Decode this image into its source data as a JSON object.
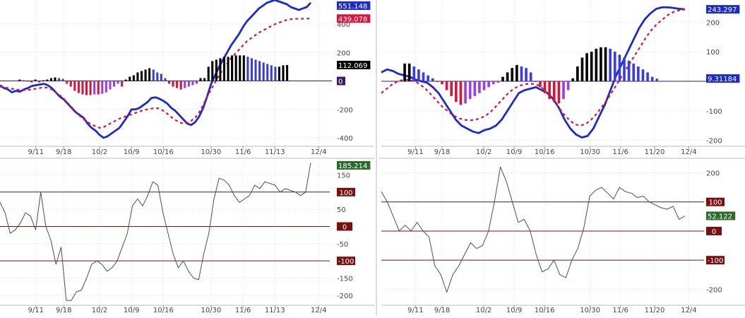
{
  "colors": {
    "macd_line": "#1a2acc",
    "signal_line": "#d4163a",
    "hist_positive": "#000000",
    "hist_down_blue": "#3a3ee0",
    "hist_negative": "#d4163a",
    "hist_up_purple": "#9c3ee0",
    "cci_line": "#3d5a3a",
    "ref_line": "#7a0f0f",
    "grid": "#d8d8d8",
    "axis_text": "#444444"
  },
  "chart_data": [
    {
      "id": "left-macd",
      "type": "bar",
      "title": "",
      "x_tick_labels": [
        "9/11",
        "9/18",
        "10/2",
        "10/9",
        "10/16",
        "10/30",
        "11/6",
        "11/13",
        "12/4"
      ],
      "x_tick_indices": [
        9,
        16,
        25,
        33,
        41,
        53,
        61,
        69,
        80
      ],
      "y_ticks": [
        400,
        200,
        -200,
        -400
      ],
      "ylim": [
        -450,
        560
      ],
      "grid": true,
      "x_count": 79,
      "series": [
        {
          "name": "",
          "kind": "line",
          "style": "solid",
          "values": [
            -30,
            -50,
            -60,
            -80,
            -70,
            -75,
            -60,
            -50,
            -35,
            -30,
            -25,
            -20,
            -30,
            -50,
            -80,
            -110,
            -130,
            -160,
            -190,
            -220,
            -240,
            -260,
            -300,
            -330,
            -350,
            -380,
            -400,
            -390,
            -370,
            -350,
            -330,
            -290,
            -250,
            -200,
            -200,
            -190,
            -170,
            -150,
            -120,
            -115,
            -125,
            -140,
            -160,
            -190,
            -210,
            -240,
            -270,
            -300,
            -310,
            -290,
            -250,
            -190,
            -110,
            -20,
            40,
            100,
            150,
            200,
            250,
            290,
            330,
            380,
            420,
            450,
            480,
            510,
            530,
            550,
            560,
            570,
            560,
            550,
            540,
            520,
            510,
            500,
            510,
            520,
            551
          ]
        },
        {
          "name": "",
          "kind": "line",
          "style": "dashed",
          "values": [
            -40,
            -45,
            -50,
            -55,
            -60,
            -63,
            -65,
            -64,
            -60,
            -55,
            -50,
            -45,
            -48,
            -60,
            -80,
            -100,
            -125,
            -155,
            -185,
            -215,
            -245,
            -270,
            -290,
            -305,
            -320,
            -330,
            -325,
            -310,
            -295,
            -280,
            -265,
            -255,
            -245,
            -235,
            -225,
            -215,
            -205,
            -200,
            -195,
            -190,
            -195,
            -210,
            -230,
            -255,
            -275,
            -290,
            -300,
            -295,
            -280,
            -260,
            -220,
            -170,
            -110,
            -60,
            -10,
            40,
            80,
            120,
            160,
            190,
            220,
            250,
            280,
            300,
            320,
            340,
            355,
            370,
            385,
            400,
            410,
            420,
            430,
            435,
            437,
            438,
            438,
            439,
            439
          ]
        },
        {
          "name": "",
          "kind": "histogram",
          "values": [
            10,
            5,
            -5,
            -10,
            10,
            -10,
            5,
            10,
            20,
            25,
            20,
            15,
            -20,
            -40,
            -70,
            -85,
            -95,
            -100,
            -100,
            -95,
            -95,
            -90,
            -80,
            -60,
            -40,
            -20,
            -40,
            10,
            30,
            40,
            60,
            70,
            80,
            90,
            80,
            60,
            50,
            20,
            -20,
            -40,
            -50,
            -60,
            -50,
            -40,
            -30,
            -20,
            20,
            20,
            100,
            140,
            150,
            160,
            170,
            170,
            180,
            180,
            180,
            180,
            170,
            160,
            150,
            140,
            130,
            120,
            110,
            100,
            100,
            110,
            112
          ]
        }
      ],
      "value_labels": [
        {
          "text": "551.148",
          "value": 551.148,
          "color": "#1a2acc"
        },
        {
          "text": "439.078",
          "value": 439.078,
          "color": "#d4163a"
        },
        {
          "text": "112.069",
          "value": 112.069,
          "color": "#000000"
        },
        {
          "text": "0",
          "value": 0,
          "color": "#3a1a6a"
        }
      ]
    },
    {
      "id": "right-macd",
      "type": "bar",
      "title": "",
      "x_tick_labels": [
        "9/11",
        "9/18",
        "10/2",
        "10/9",
        "10/16",
        "10/30",
        "11/6",
        "11/20",
        "12/4"
      ],
      "x_tick_indices": [
        9,
        16,
        27,
        35,
        43,
        55,
        63,
        72,
        81
      ],
      "y_ticks": [
        200,
        100,
        -100,
        -200
      ],
      "ylim": [
        -215,
        270
      ],
      "grid": true,
      "x_count": 81,
      "series": [
        {
          "name": "",
          "kind": "line",
          "style": "solid",
          "values": [
            30,
            40,
            35,
            25,
            20,
            15,
            5,
            0,
            -5,
            -20,
            -40,
            -70,
            -100,
            -130,
            -150,
            -160,
            -170,
            -175,
            -165,
            -160,
            -150,
            -130,
            -100,
            -70,
            -40,
            -30,
            -25,
            -20,
            -30,
            -40,
            -60,
            -90,
            -130,
            -160,
            -180,
            -190,
            -185,
            -160,
            -120,
            -80,
            -30,
            20,
            60,
            100,
            140,
            180,
            210,
            230,
            245,
            250,
            250,
            248,
            245,
            243
          ]
        },
        {
          "name": "",
          "kind": "line",
          "style": "dashed",
          "values": [
            -40,
            -25,
            -10,
            0,
            5,
            5,
            0,
            -10,
            -25,
            -45,
            -65,
            -85,
            -100,
            -115,
            -125,
            -130,
            -132,
            -130,
            -125,
            -115,
            -100,
            -80,
            -60,
            -40,
            -25,
            -15,
            -10,
            -8,
            -10,
            -20,
            -40,
            -60,
            -85,
            -110,
            -130,
            -145,
            -150,
            -145,
            -130,
            -110,
            -85,
            -60,
            -30,
            0,
            30,
            60,
            90,
            120,
            150,
            175,
            195,
            210,
            225,
            235,
            240,
            243
          ]
        },
        {
          "name": "",
          "kind": "histogram",
          "values": [
            60,
            60,
            50,
            40,
            30,
            20,
            10,
            0,
            -10,
            -30,
            -50,
            -70,
            -80,
            -75,
            -60,
            -50,
            -40,
            -30,
            -20,
            -10,
            -5,
            15,
            30,
            45,
            55,
            50,
            45,
            30,
            0,
            -20,
            -40,
            -60,
            -70,
            -75,
            -60,
            -30,
            10,
            50,
            80,
            95,
            100,
            110,
            115,
            115,
            110,
            100,
            90,
            80,
            70,
            60,
            50,
            40,
            30,
            15,
            9
          ]
        }
      ],
      "value_labels": [
        {
          "text": "243.297",
          "value": 243.297,
          "color": "#1a2acc"
        },
        {
          "text": "9.31184",
          "value": 9.31184,
          "color": "#1a2acc"
        }
      ]
    },
    {
      "id": "left-cci",
      "type": "line",
      "title": "",
      "x_tick_labels": [
        "9/11",
        "9/18",
        "10/2",
        "10/9",
        "10/16",
        "10/30",
        "11/6",
        "11/13",
        "12/4"
      ],
      "x_tick_indices": [
        9,
        16,
        25,
        33,
        41,
        53,
        61,
        69,
        80
      ],
      "y_ticks": [
        150,
        50,
        -50,
        -150,
        -200
      ],
      "ylim": [
        -225,
        190
      ],
      "grid": true,
      "x_count": 79,
      "series": [
        {
          "name": "",
          "values": [
            70,
            40,
            -20,
            -10,
            10,
            40,
            30,
            -10,
            100,
            0,
            -40,
            -110,
            -60,
            -215,
            -215,
            -190,
            -185,
            -150,
            -110,
            -100,
            -110,
            -130,
            -120,
            -100,
            -60,
            -20,
            60,
            80,
            60,
            90,
            130,
            120,
            40,
            -20,
            -80,
            -120,
            -100,
            -130,
            -150,
            -155,
            -80,
            -20,
            80,
            140,
            135,
            120,
            90,
            70,
            80,
            90,
            120,
            110,
            130,
            125,
            120,
            100,
            110,
            105,
            100,
            90,
            100,
            185
          ]
        }
      ],
      "reference_lines": [
        {
          "value": 100,
          "label": "100"
        },
        {
          "value": 0,
          "label": "0"
        },
        {
          "value": -100,
          "label": "-100"
        }
      ],
      "value_labels": [
        {
          "text": "185.214",
          "value": 185.214,
          "color": "#2a6a2a"
        }
      ]
    },
    {
      "id": "right-cci",
      "type": "line",
      "title": "",
      "x_tick_labels": [
        "9/11",
        "9/18",
        "10/2",
        "10/9",
        "10/16",
        "10/30",
        "11/6",
        "11/20",
        "12/4"
      ],
      "x_tick_indices": [
        9,
        16,
        27,
        35,
        43,
        55,
        63,
        72,
        81
      ],
      "y_ticks": [
        200,
        -200
      ],
      "ylim": [
        -250,
        240
      ],
      "grid": true,
      "x_count": 81,
      "series": [
        {
          "name": "",
          "values": [
            135,
            100,
            50,
            0,
            20,
            0,
            30,
            0,
            -20,
            -120,
            -150,
            -210,
            -150,
            -120,
            -80,
            -40,
            -60,
            -50,
            0,
            100,
            220,
            170,
            100,
            30,
            40,
            0,
            -80,
            -140,
            -130,
            -100,
            -150,
            -160,
            -100,
            -60,
            10,
            120,
            140,
            150,
            130,
            110,
            150,
            135,
            130,
            115,
            120,
            100,
            90,
            80,
            75,
            85,
            40,
            52
          ]
        }
      ],
      "reference_lines": [
        {
          "value": 100,
          "label": "100"
        },
        {
          "value": 0,
          "label": "0"
        },
        {
          "value": -100,
          "label": "-100"
        }
      ],
      "value_labels": [
        {
          "text": "52.122",
          "value": 52.122,
          "color": "#2a6a2a"
        }
      ]
    }
  ]
}
